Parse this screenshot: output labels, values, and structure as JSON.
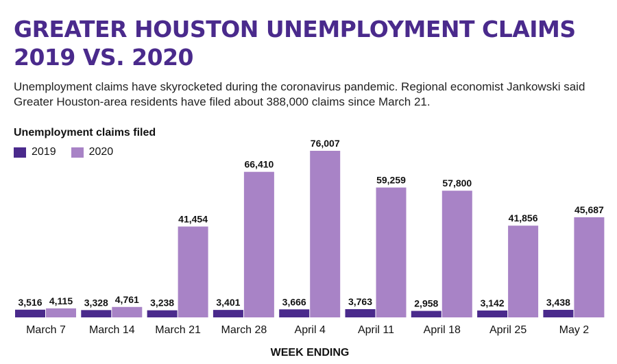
{
  "header": {
    "title": "GREATER HOUSTON UNEMPLOYMENT CLAIMS 2019 VS. 2020",
    "subtitle": "Unemployment claims have skyrocketed during the coronavirus pandemic. Regional economist Jankowski said Greater Houston-area residents have filed about 388,000 claims since March 21."
  },
  "colors": {
    "s2019": "#4a2a8c",
    "s2020": "#a883c6",
    "title": "#4a2a8c"
  },
  "chart_data": {
    "type": "bar",
    "title": "Unemployment claims filed",
    "xlabel": "WEEK ENDING",
    "ylabel": "",
    "categories": [
      "March 7",
      "March 14",
      "March 21",
      "March 28",
      "April 4",
      "April 11",
      "April 18",
      "April 25",
      "May 2"
    ],
    "series": [
      {
        "name": "2019",
        "values": [
          3516,
          3328,
          3238,
          3401,
          3666,
          3763,
          2958,
          3142,
          3438
        ],
        "labels": [
          "3,516",
          "3,328",
          "3,238",
          "3,401",
          "3,666",
          "3,763",
          "2,958",
          "3,142",
          "3,438"
        ]
      },
      {
        "name": "2020",
        "values": [
          4115,
          4761,
          41454,
          66410,
          76007,
          59259,
          57800,
          41856,
          45687
        ],
        "labels": [
          "4,115",
          "4,761",
          "41,454",
          "66,410",
          "76,007",
          "59,259",
          "57,800",
          "41,856",
          "45,687"
        ]
      }
    ],
    "ylim": [
      0,
      76007
    ],
    "legend": "top-left",
    "grid": false
  }
}
